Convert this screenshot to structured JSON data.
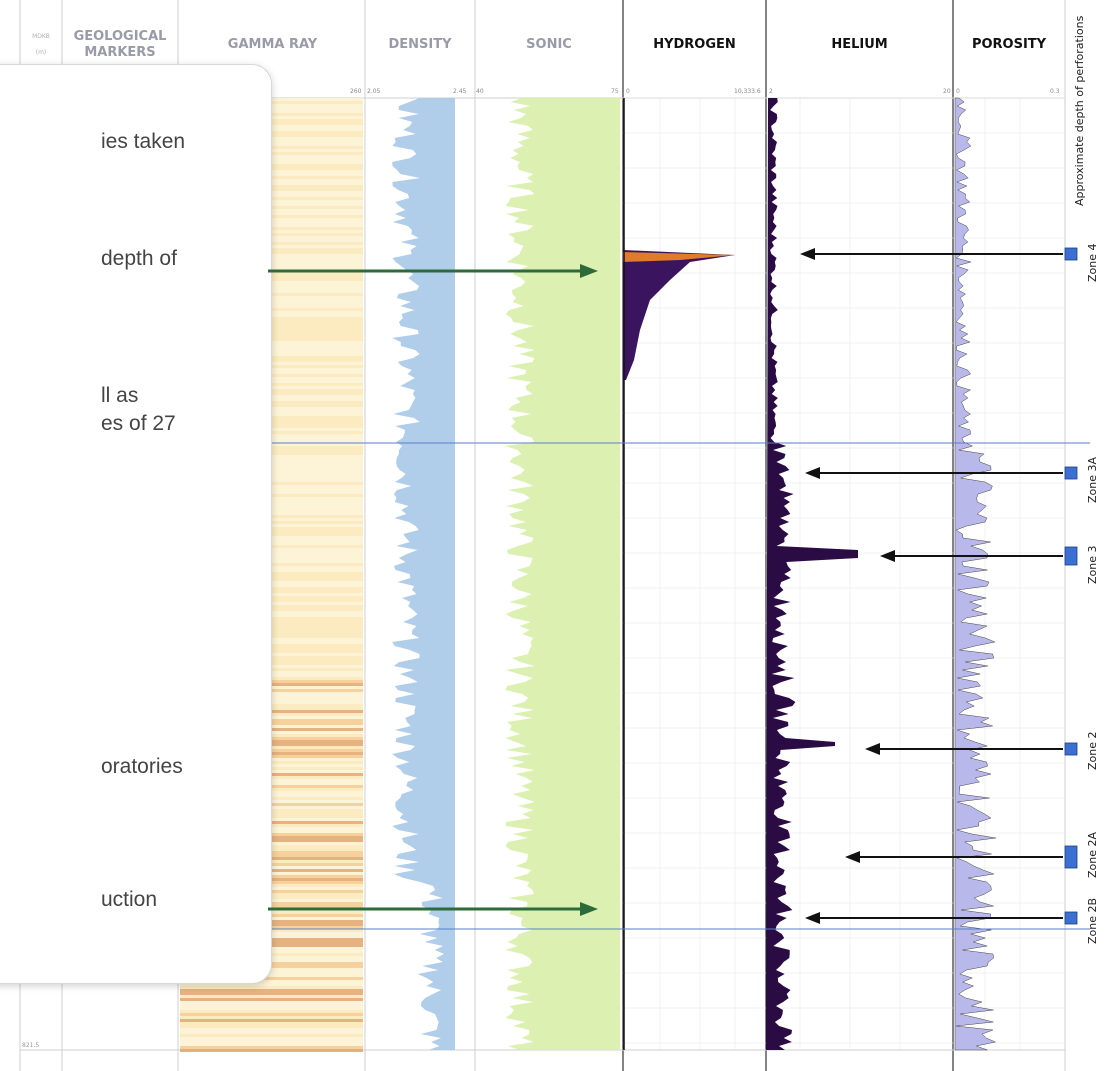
{
  "headers": {
    "mdkb": "MDKB",
    "mdkb_unit": "(m)",
    "geological_markers": "GEOLOGICAL MARKERS",
    "gamma_ray": "GAMMA RAY",
    "density": "DENSITY",
    "sonic": "SONIC",
    "hydrogen": "HYDROGEN",
    "helium": "HELIUM",
    "porosity": "POROSITY"
  },
  "scales": {
    "gamma_max": "260",
    "density_min": "2.05",
    "density_max": "2.45",
    "sonic_min": "40",
    "sonic_max": "75",
    "hydrogen_min": "0",
    "hydrogen_max": "10,333.6",
    "helium_min": "2",
    "helium_max": "20",
    "porosity_min": "0",
    "porosity_max": "0.3"
  },
  "depth_bottom": "821.5",
  "perforation_title": "Approximate depth of perforations",
  "zones": [
    {
      "name": "Zone 4"
    },
    {
      "name": "Zone 3A"
    },
    {
      "name": "Zone 3"
    },
    {
      "name": "Zone 2"
    },
    {
      "name": "Zone 2A"
    },
    {
      "name": "Zone 2B"
    }
  ],
  "callout": {
    "line1": "ies taken",
    "line2": "depth of",
    "line3a": "ll as",
    "line3b": "es of 27",
    "line4": "oratories",
    "line5": "uction"
  },
  "colors": {
    "green_arrow": "#2e6b3a",
    "zone_marker": "#3b6fd1",
    "separator_line": "#5a7ec9",
    "density_fill": "#a7c8e8",
    "sonic_fill": "#d8f0a8",
    "gamma_fill": "#fbe7b5",
    "hydrogen_fill": "#3b1460",
    "helium_fill": "#2a0b44",
    "porosity_fill": "#b9b8ea"
  }
}
